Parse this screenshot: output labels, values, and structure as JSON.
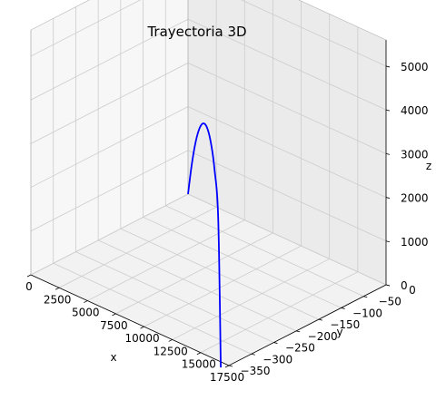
{
  "chart_data": {
    "type": "line3d",
    "title": "Trayectoria 3D",
    "xlabel": "x",
    "ylabel": "y",
    "zlabel": "z",
    "xlim": [
      0,
      17500
    ],
    "ylim": [
      -350,
      0
    ],
    "zlim": [
      0,
      5600
    ],
    "xticks": [
      "0",
      "2500",
      "5000",
      "7500",
      "10000",
      "12500",
      "15000",
      "17500"
    ],
    "yticks": [
      "0",
      "−50",
      "−100",
      "−150",
      "−200",
      "−250",
      "−300",
      "−350"
    ],
    "zticks": [
      "0",
      "1000",
      "2000",
      "3000",
      "4000",
      "5000"
    ],
    "grid": true,
    "series": [
      {
        "color": "#0000ff",
        "x": [
          0,
          2000,
          4000,
          6000,
          8000,
          10000,
          12000,
          14000,
          16000,
          17300
        ],
        "y": [
          0,
          -42,
          -84,
          -126,
          -168,
          -210,
          -252,
          -294,
          -336,
          -363
        ],
        "z": [
          0,
          1140,
          2100,
          2870,
          3450,
          3820,
          3950,
          3790,
          3100,
          0
        ]
      }
    ]
  }
}
